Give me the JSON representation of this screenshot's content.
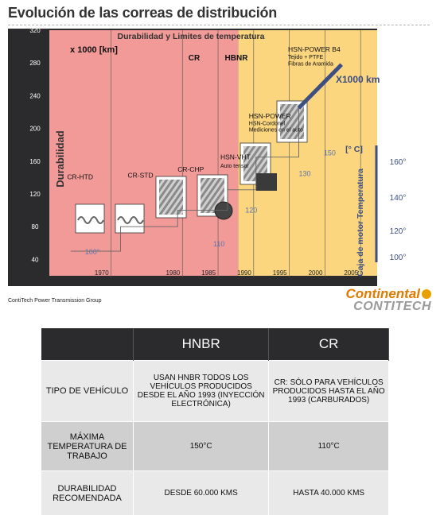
{
  "page_title": "Evolución de las correas de distribución",
  "footer_left": "ContiTech Power Transmission Group",
  "logo": {
    "line1": "Continental",
    "line2": "CONTITECH"
  },
  "colors": {
    "cr_zone": "#f29a98",
    "hnbr_zone": "#fbd67e",
    "frame": "#2b2b2d",
    "series_line": "#3d4f82",
    "temp_text": "#5a74ae"
  },
  "chart_data": {
    "type": "line",
    "title": "Durabilidad y Limites de temperatura",
    "xlabel": "",
    "ylabel": "Durabilidad",
    "y_unit_label": "x 1000 [km]",
    "right_axis_title": "Caja de motor Temperatura",
    "right_axis_unit": "[° C]",
    "ylim": [
      20,
      320
    ],
    "xlim": [
      1963,
      2009
    ],
    "x_ticks": [
      1970,
      1980,
      1985,
      1990,
      1995,
      2000,
      2005
    ],
    "y_ticks": [
      40,
      80,
      120,
      160,
      200,
      240,
      280,
      320
    ],
    "right_ticks": [
      "100°",
      "120°",
      "140°",
      "160°"
    ],
    "zones": [
      {
        "label": "CR",
        "from": 1963,
        "to": 1989.5
      },
      {
        "label": "HBNR",
        "from": 1989.5,
        "to": 2009
      }
    ],
    "series": [
      {
        "name": "X1000 km",
        "x": [
          1966,
          1973,
          1973,
          1981,
          1981,
          1988,
          1988,
          1992,
          1992,
          1998,
          1998,
          2004
        ],
        "y": [
          50,
          50,
          80,
          80,
          100,
          100,
          125,
          125,
          165,
          165,
          225,
          278
        ]
      }
    ],
    "temperature_points": [
      {
        "label": "100°",
        "x": 1968,
        "y": 46
      },
      {
        "label": "110",
        "x": 1986,
        "y": 56
      },
      {
        "label": "120",
        "x": 1990.5,
        "y": 97
      },
      {
        "label": "130",
        "x": 1998,
        "y": 142
      },
      {
        "label": "150",
        "x": 2001.5,
        "y": 167
      }
    ],
    "belts": [
      {
        "label": "CR-HTD",
        "x": 1965.5,
        "y": 138
      },
      {
        "label": "CR-STD",
        "x": 1974,
        "y": 140
      },
      {
        "label": "CR-CHP",
        "x": 1981,
        "y": 147
      },
      {
        "label": "HSN-VHT",
        "x": 1987,
        "y": 162
      },
      {
        "label": "Auto tensor",
        "x": 1987,
        "y": 152
      },
      {
        "label": "HSN-POWER",
        "x": 1991,
        "y": 212
      },
      {
        "label": "HSN-Cordonel",
        "x": 1991,
        "y": 204
      },
      {
        "label": "Mediciones en el auto",
        "x": 1991,
        "y": 196
      },
      {
        "label": "HSN-POWER B4",
        "x": 1996.5,
        "y": 294
      },
      {
        "label": "Tejido + PTFE",
        "x": 1996.5,
        "y": 285
      },
      {
        "label": "Fibras de Aramida",
        "x": 1996.5,
        "y": 277
      }
    ]
  },
  "table": {
    "headers": [
      "",
      "HNBR",
      "CR"
    ],
    "rows": [
      {
        "label": "TIPO DE VEHÍCULO",
        "hnbr": "USAN HNBR TODOS LOS VEHÍCULOS PRODUCIDOS DESDE EL AÑO 1993 (INYECCIÓN ELECTRÓNICA)",
        "cr": "CR: SÓLO PARA VEHÍCULOS PRODUCIDOS HASTA EL AÑO 1993 (CARBURADOS)"
      },
      {
        "label": "MÁXIMA TEMPERATURA DE TRABAJO",
        "hnbr": "150°C",
        "cr": "110°C"
      },
      {
        "label": "DURABILIDAD RECOMENDADA",
        "hnbr": "DESDE 60.000 KMS",
        "cr": "HASTA 40.000 KMS"
      }
    ]
  }
}
